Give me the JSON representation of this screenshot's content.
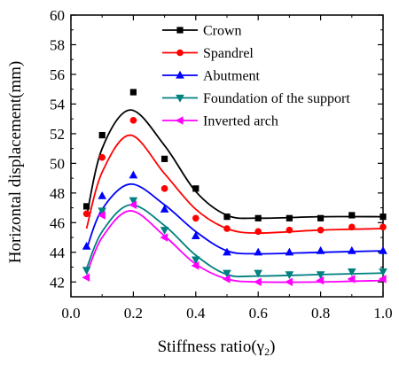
{
  "chart_data": {
    "type": "scatter",
    "xlabel": "Stiffness ratio(",
    "xlabel_symbol": "γ",
    "xlabel_subscript": "2",
    "xlabel_close": ")",
    "ylabel": "Horizontal displacement(mm)",
    "xlim": [
      0.0,
      1.0
    ],
    "ylim": [
      41,
      60
    ],
    "x_ticks": [
      "0.0",
      "0.2",
      "0.4",
      "0.6",
      "0.8",
      "1.0"
    ],
    "y_ticks": [
      "42",
      "44",
      "46",
      "48",
      "50",
      "52",
      "54",
      "56",
      "58",
      "60"
    ],
    "legend_position": "top-right",
    "grid": false,
    "fitted_curves": true,
    "x": [
      0.05,
      0.1,
      0.2,
      0.3,
      0.4,
      0.5,
      0.6,
      0.7,
      0.8,
      0.9,
      1.0
    ],
    "series": [
      {
        "name": "Crown",
        "color": "#000000",
        "marker": "square",
        "values": [
          47.1,
          51.9,
          54.8,
          50.3,
          48.3,
          46.4,
          46.3,
          46.3,
          46.3,
          46.5,
          46.4
        ]
      },
      {
        "name": "Spandrel",
        "color": "#ff0000",
        "marker": "circle",
        "values": [
          46.6,
          50.4,
          52.9,
          48.3,
          46.3,
          45.6,
          45.4,
          45.5,
          45.5,
          45.7,
          45.7
        ]
      },
      {
        "name": "Abutment",
        "color": "#0000ff",
        "marker": "triangle-up",
        "values": [
          44.4,
          47.8,
          49.2,
          46.9,
          45.1,
          44.0,
          44.0,
          44.0,
          44.1,
          44.1,
          44.1
        ]
      },
      {
        "name": "Foundation of the support",
        "color": "#008080",
        "marker": "triangle-down",
        "values": [
          42.8,
          46.8,
          47.5,
          45.5,
          43.5,
          42.6,
          42.6,
          42.5,
          42.5,
          42.7,
          42.7
        ]
      },
      {
        "name": "Inverted arch",
        "color": "#ff00ff",
        "marker": "triangle-left",
        "values": [
          42.3,
          46.5,
          47.2,
          45.0,
          43.1,
          42.2,
          42.0,
          42.0,
          42.1,
          42.2,
          42.2
        ]
      }
    ]
  }
}
